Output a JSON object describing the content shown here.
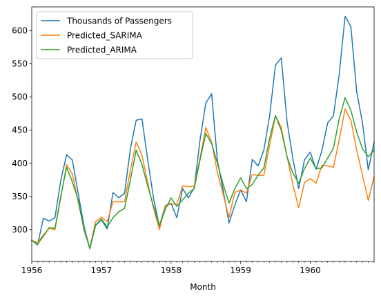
{
  "chart_data": {
    "type": "line",
    "xlabel": "Month",
    "ylabel": "",
    "title": "",
    "x_start": "1956-01",
    "xlim": [
      "1956-01",
      "1960-12"
    ],
    "ylim": [
      252,
      636
    ],
    "y_ticks": [
      300,
      350,
      400,
      450,
      500,
      550,
      600
    ],
    "x_ticks": [
      {
        "month": "1956-01",
        "label": "1956"
      },
      {
        "month": "1957-01",
        "label": "1957"
      },
      {
        "month": "1958-01",
        "label": "1958"
      },
      {
        "month": "1959-01",
        "label": "1959"
      },
      {
        "month": "1960-01",
        "label": "1960"
      }
    ],
    "legend_position": "top-left",
    "grid": false,
    "series": [
      {
        "name": "Thousands of Passengers",
        "color": "#1f77b4",
        "values": [
          284,
          277,
          317,
          313,
          318,
          374,
          413,
          405,
          355,
          306,
          271,
          306,
          315,
          301,
          356,
          348,
          355,
          422,
          465,
          467,
          404,
          347,
          305,
          336,
          340,
          318,
          362,
          348,
          363,
          435,
          491,
          505,
          404,
          359,
          310,
          337,
          360,
          342,
          406,
          396,
          420,
          472,
          548,
          559,
          463,
          407,
          362,
          405,
          417,
          391,
          419,
          461,
          472,
          535,
          622,
          606,
          508,
          461,
          390,
          432
        ]
      },
      {
        "name": "Predicted_SARIMA",
        "color": "#ff7f0e",
        "values": [
          284,
          280,
          292,
          302,
          300,
          348,
          398,
          384,
          342,
          302,
          272,
          312,
          319,
          312,
          342,
          342,
          342,
          390,
          432,
          412,
          370,
          332,
          300,
          335,
          339,
          338,
          366,
          365,
          365,
          408,
          454,
          432,
          386,
          353,
          318,
          356,
          360,
          355,
          383,
          382,
          382,
          427,
          472,
          454,
          410,
          368,
          333,
          371,
          377,
          370,
          397,
          396,
          394,
          436,
          482,
          465,
          420,
          382,
          344,
          380
        ]
      },
      {
        "name": "Predicted_ARIMA",
        "color": "#2ca02c",
        "values": [
          284,
          278,
          290,
          303,
          302,
          350,
          394,
          372,
          345,
          300,
          272,
          307,
          316,
          304,
          318,
          327,
          332,
          375,
          420,
          398,
          365,
          335,
          306,
          330,
          348,
          335,
          345,
          355,
          362,
          405,
          445,
          430,
          400,
          368,
          340,
          362,
          378,
          362,
          368,
          382,
          393,
          438,
          472,
          450,
          410,
          385,
          370,
          392,
          408,
          392,
          393,
          408,
          423,
          468,
          499,
          480,
          447,
          422,
          410,
          420
        ]
      }
    ]
  }
}
